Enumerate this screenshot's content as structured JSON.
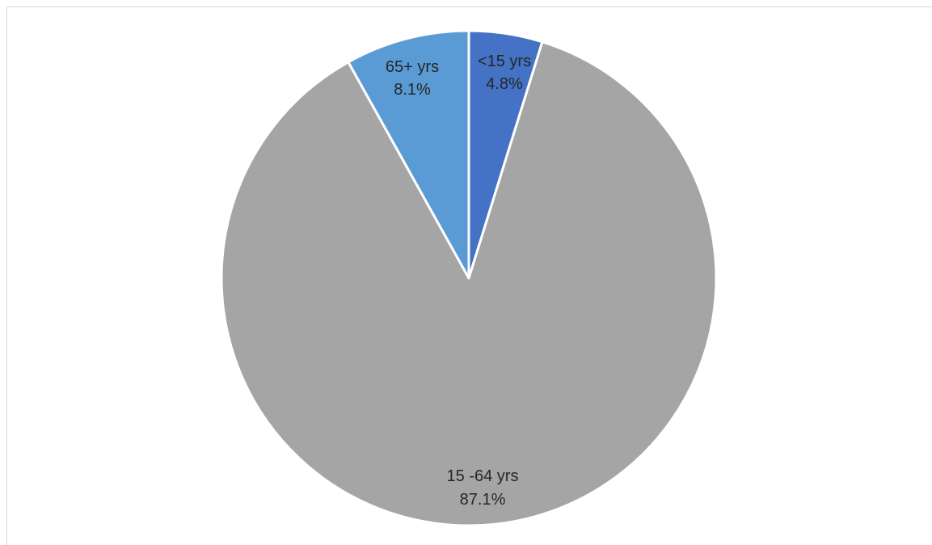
{
  "chart_data": {
    "type": "pie",
    "title": "",
    "slices": [
      {
        "label": "<15 yrs",
        "value": 4.8,
        "value_label": "4.8%",
        "color": "#4472c4"
      },
      {
        "label": "15 -64 yrs",
        "value": 87.1,
        "value_label": "87.1%",
        "color": "#a5a5a5"
      },
      {
        "label": "65+ yrs",
        "value": 8.1,
        "value_label": "8.1%",
        "color": "#5b9bd5"
      }
    ],
    "start_angle": "12 o'clock",
    "direction": "clockwise",
    "slice_border_color": "#ffffff",
    "legend": "none"
  }
}
